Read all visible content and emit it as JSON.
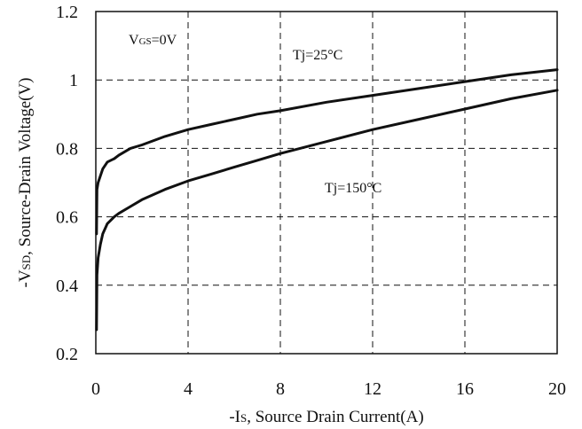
{
  "chart_data": {
    "type": "line",
    "title": "",
    "xlabel": "-Is, Source Drain Current(A)",
    "xlabel_parts": [
      "-I",
      "S",
      ", Source Drain Current(A)"
    ],
    "ylabel": "-VSD, Source-Drain Voltage(V)",
    "ylabel_parts": [
      "-V",
      "SD",
      ", Source-Drain Voltage(V)"
    ],
    "xlim": [
      0,
      20
    ],
    "ylim": [
      0.2,
      1.2
    ],
    "x_ticks": [
      0,
      4,
      8,
      12,
      16,
      20
    ],
    "x_tick_labels": [
      "0",
      "4",
      "8",
      "12",
      "16",
      "20"
    ],
    "y_ticks": [
      0.2,
      0.4,
      0.6,
      0.8,
      1.0,
      1.2
    ],
    "y_tick_labels": [
      "0.2",
      "0.4",
      "0.6",
      "0.8",
      "1",
      "1.2"
    ],
    "grid": true,
    "grid_style": "dashed",
    "annotations": {
      "condition": {
        "main": "V",
        "sub": "GS",
        "rest": "=0V"
      },
      "label_25": "Tj=25°C",
      "label_150": "Tj=150°C"
    },
    "series": [
      {
        "name": "Tj=25°C",
        "x": [
          0.03,
          0.05,
          0.1,
          0.2,
          0.3,
          0.5,
          0.8,
          1,
          1.5,
          2,
          3,
          4,
          5,
          6,
          7,
          8,
          10,
          12,
          14,
          16,
          18,
          20
        ],
        "y": [
          0.55,
          0.68,
          0.7,
          0.72,
          0.74,
          0.76,
          0.77,
          0.78,
          0.8,
          0.81,
          0.835,
          0.855,
          0.87,
          0.885,
          0.9,
          0.91,
          0.935,
          0.955,
          0.975,
          0.995,
          1.015,
          1.03
        ]
      },
      {
        "name": "Tj=150°C",
        "x": [
          0.03,
          0.05,
          0.1,
          0.2,
          0.3,
          0.5,
          0.8,
          1,
          1.5,
          2,
          3,
          4,
          5,
          6,
          7,
          8,
          10,
          12,
          14,
          16,
          18,
          20
        ],
        "y": [
          0.27,
          0.43,
          0.48,
          0.52,
          0.55,
          0.58,
          0.6,
          0.61,
          0.63,
          0.65,
          0.68,
          0.705,
          0.725,
          0.745,
          0.765,
          0.785,
          0.82,
          0.855,
          0.885,
          0.915,
          0.945,
          0.97
        ]
      }
    ]
  }
}
